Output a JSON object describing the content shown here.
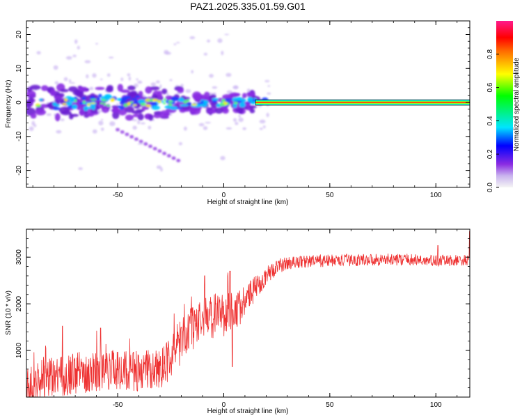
{
  "title": "PAZ1.2025.335.01.59.G01",
  "chart_data": [
    {
      "type": "heatmap",
      "name": "spectrogram",
      "xlabel": "Height of straight line (km)",
      "ylabel": "Frequency (Hz)",
      "xlim": [
        -93,
        116
      ],
      "ylim": [
        -25,
        24
      ],
      "xticks": [
        -50,
        0,
        50,
        100
      ],
      "yticks": [
        -20,
        -10,
        0,
        10,
        20
      ],
      "xtick_labels": [
        "-50",
        "0",
        "50",
        "100"
      ],
      "ytick_labels": [
        "-20",
        "-10",
        "0",
        "10",
        "20"
      ],
      "carrier_frequency_hz": 0,
      "carrier_band_start_km": 15,
      "colorbar": {
        "label": "Normalized spectral amplitude",
        "range": [
          0,
          1
        ],
        "ticks": [
          0.0,
          0.2,
          0.4,
          0.6,
          0.8
        ],
        "tick_labels": [
          "0.0",
          "0.2",
          "0.4",
          "0.6",
          "0.8"
        ]
      }
    },
    {
      "type": "line",
      "name": "snr",
      "xlabel": "Height of straight line (km)",
      "ylabel": "SNR (10 * v/v)",
      "xlim": [
        -93,
        116
      ],
      "ylim": [
        0,
        3600
      ],
      "xticks": [
        -50,
        0,
        50,
        100
      ],
      "yticks": [
        1000,
        2000,
        3000
      ],
      "xtick_labels": [
        "-50",
        "0",
        "50",
        "100"
      ],
      "ytick_labels": [
        "1000",
        "2000",
        "3000"
      ],
      "color": "#ee3030",
      "series": [
        {
          "name": "SNR",
          "envelope_x": [
            -93,
            -88,
            -80,
            -70,
            -60,
            -50,
            -40,
            -32,
            -28,
            -24,
            -20,
            -16,
            -12,
            -8,
            -4,
            0,
            4,
            8,
            12,
            16,
            20,
            24,
            28,
            35,
            45,
            55,
            70,
            85,
            100,
            116
          ],
          "envelope_y": [
            200,
            300,
            420,
            520,
            560,
            560,
            540,
            580,
            700,
            950,
            1200,
            1450,
            1600,
            1700,
            1750,
            1800,
            1850,
            1950,
            2150,
            2400,
            2600,
            2750,
            2850,
            2900,
            2920,
            2930,
            2950,
            2950,
            2920,
            2930
          ],
          "noise_amplitude_x": [
            -93,
            -30,
            -20,
            0,
            10,
            20,
            30,
            116
          ],
          "noise_amplitude_y": [
            450,
            450,
            500,
            500,
            350,
            200,
            140,
            120
          ],
          "spikes": [
            {
              "x": -76,
              "y": 1520
            },
            {
              "x": -58,
              "y": 1480
            },
            {
              "x": -20,
              "y": 1500
            },
            {
              "x": -9,
              "y": 2600
            },
            {
              "x": 3,
              "y": 2700
            },
            {
              "x": 4,
              "y": 650
            },
            {
              "x": 101,
              "y": 3250
            },
            {
              "x": 116,
              "y": 3550
            }
          ]
        }
      ]
    }
  ]
}
